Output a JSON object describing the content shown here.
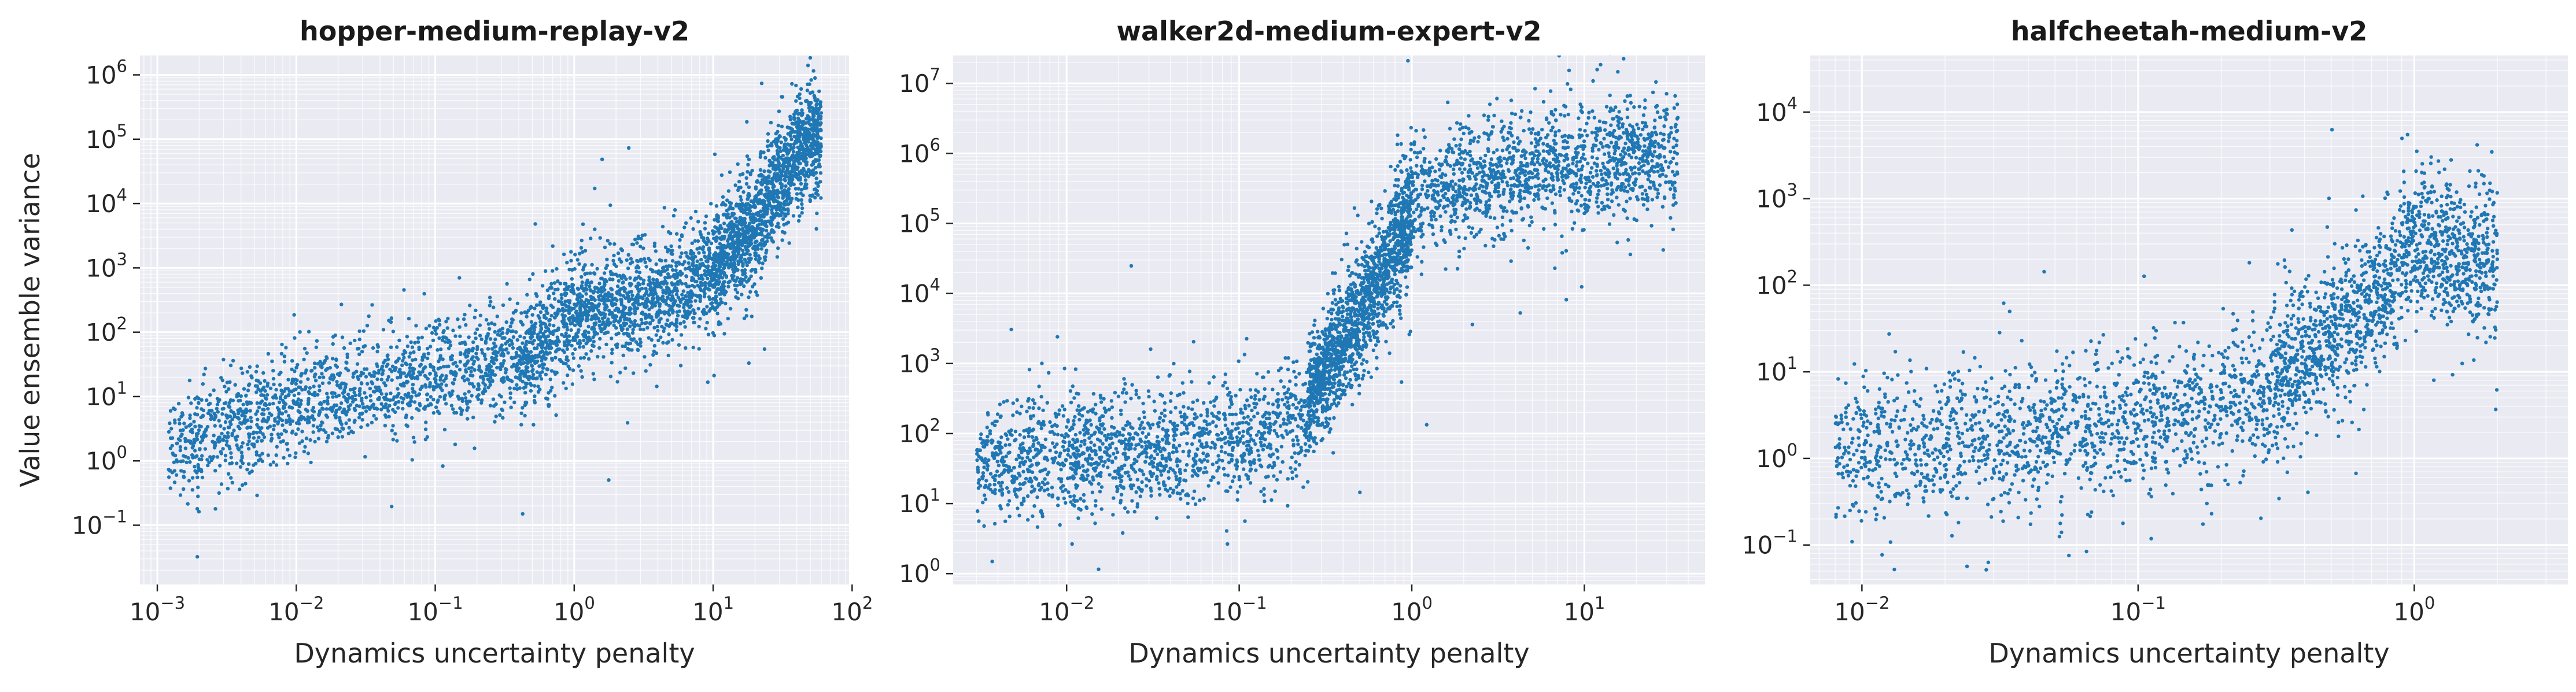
{
  "chart_data": [
    {
      "type": "scatter",
      "title": "hopper-medium-replay-v2",
      "xlabel": "Dynamics uncertainty penalty",
      "ylabel": "Value ensemble variance",
      "xscale": "log",
      "yscale": "log",
      "xlim": [
        0.00075,
        95
      ],
      "ylim": [
        0.012,
        2000000
      ],
      "xticks": [
        {
          "base": "10",
          "exp": "−3"
        },
        {
          "base": "10",
          "exp": "−2"
        },
        {
          "base": "10",
          "exp": "−1"
        },
        {
          "base": "10",
          "exp": "0"
        },
        {
          "base": "10",
          "exp": "1"
        },
        {
          "base": "10",
          "exp": "2"
        }
      ],
      "yticks": [
        {
          "base": "10",
          "exp": "−1"
        },
        {
          "base": "10",
          "exp": "0"
        },
        {
          "base": "10",
          "exp": "1"
        },
        {
          "base": "10",
          "exp": "2"
        },
        {
          "base": "10",
          "exp": "3"
        },
        {
          "base": "10",
          "exp": "4"
        },
        {
          "base": "10",
          "exp": "5"
        },
        {
          "base": "10",
          "exp": "6"
        }
      ],
      "color": "#1f77b4",
      "grid": true,
      "clusters": [
        {
          "x_range": [
            0.0012,
            0.4
          ],
          "y_trend": [
            [
              0.0012,
              1.5
            ],
            [
              0.01,
              8
            ],
            [
              0.1,
              20
            ],
            [
              0.4,
              50
            ]
          ]
        },
        {
          "x_range": [
            0.4,
            10
          ],
          "y_trend": [
            [
              0.4,
              30
            ],
            [
              1,
              200
            ],
            [
              5,
              400
            ],
            [
              10,
              800
            ]
          ]
        },
        {
          "x_range": [
            10,
            60
          ],
          "y_trend": [
            [
              10,
              1000
            ],
            [
              20,
              5000
            ],
            [
              35,
              40000
            ],
            [
              50,
              100000
            ]
          ]
        }
      ]
    },
    {
      "type": "scatter",
      "title": "walker2d-medium-expert-v2",
      "xlabel": "Dynamics uncertainty penalty",
      "ylabel": "",
      "xscale": "log",
      "yscale": "log",
      "xlim": [
        0.0022,
        50
      ],
      "ylim": [
        0.7,
        25000000
      ],
      "xticks": [
        {
          "base": "10",
          "exp": "−2"
        },
        {
          "base": "10",
          "exp": "−1"
        },
        {
          "base": "10",
          "exp": "0"
        },
        {
          "base": "10",
          "exp": "1"
        }
      ],
      "yticks": [
        {
          "base": "10",
          "exp": "0"
        },
        {
          "base": "10",
          "exp": "1"
        },
        {
          "base": "10",
          "exp": "2"
        },
        {
          "base": "10",
          "exp": "3"
        },
        {
          "base": "10",
          "exp": "4"
        },
        {
          "base": "10",
          "exp": "5"
        },
        {
          "base": "10",
          "exp": "6"
        },
        {
          "base": "10",
          "exp": "7"
        }
      ],
      "color": "#1f77b4",
      "grid": true,
      "clusters": [
        {
          "x_range": [
            0.003,
            0.25
          ],
          "y_trend": [
            [
              0.003,
              40
            ],
            [
              0.05,
              60
            ],
            [
              0.25,
              150
            ]
          ]
        },
        {
          "x_range": [
            0.25,
            1
          ],
          "y_trend": [
            [
              0.25,
              300
            ],
            [
              0.5,
              5000
            ],
            [
              1,
              100000
            ]
          ]
        },
        {
          "x_range": [
            0.8,
            35
          ],
          "y_trend": [
            [
              0.8,
              200000
            ],
            [
              5,
              600000
            ],
            [
              35,
              1000000
            ]
          ]
        }
      ]
    },
    {
      "type": "scatter",
      "title": "halfcheetah-medium-v2",
      "xlabel": "Dynamics uncertainty penalty",
      "ylabel": "",
      "xscale": "log",
      "yscale": "log",
      "xlim": [
        0.0065,
        3.6
      ],
      "ylim": [
        0.035,
        45000
      ],
      "xticks": [
        {
          "base": "10",
          "exp": "−2"
        },
        {
          "base": "10",
          "exp": "−1"
        },
        {
          "base": "10",
          "exp": "0"
        }
      ],
      "yticks": [
        {
          "base": "10",
          "exp": "−1"
        },
        {
          "base": "10",
          "exp": "0"
        },
        {
          "base": "10",
          "exp": "1"
        },
        {
          "base": "10",
          "exp": "2"
        },
        {
          "base": "10",
          "exp": "3"
        },
        {
          "base": "10",
          "exp": "4"
        }
      ],
      "color": "#1f77b4",
      "grid": true,
      "clusters": [
        {
          "x_range": [
            0.008,
            0.3
          ],
          "y_trend": [
            [
              0.008,
              1.2
            ],
            [
              0.05,
              2
            ],
            [
              0.3,
              5
            ]
          ]
        },
        {
          "x_range": [
            0.3,
            2
          ],
          "y_trend": [
            [
              0.3,
              8
            ],
            [
              0.7,
              60
            ],
            [
              1,
              300
            ],
            [
              2,
              200
            ]
          ]
        }
      ]
    }
  ]
}
